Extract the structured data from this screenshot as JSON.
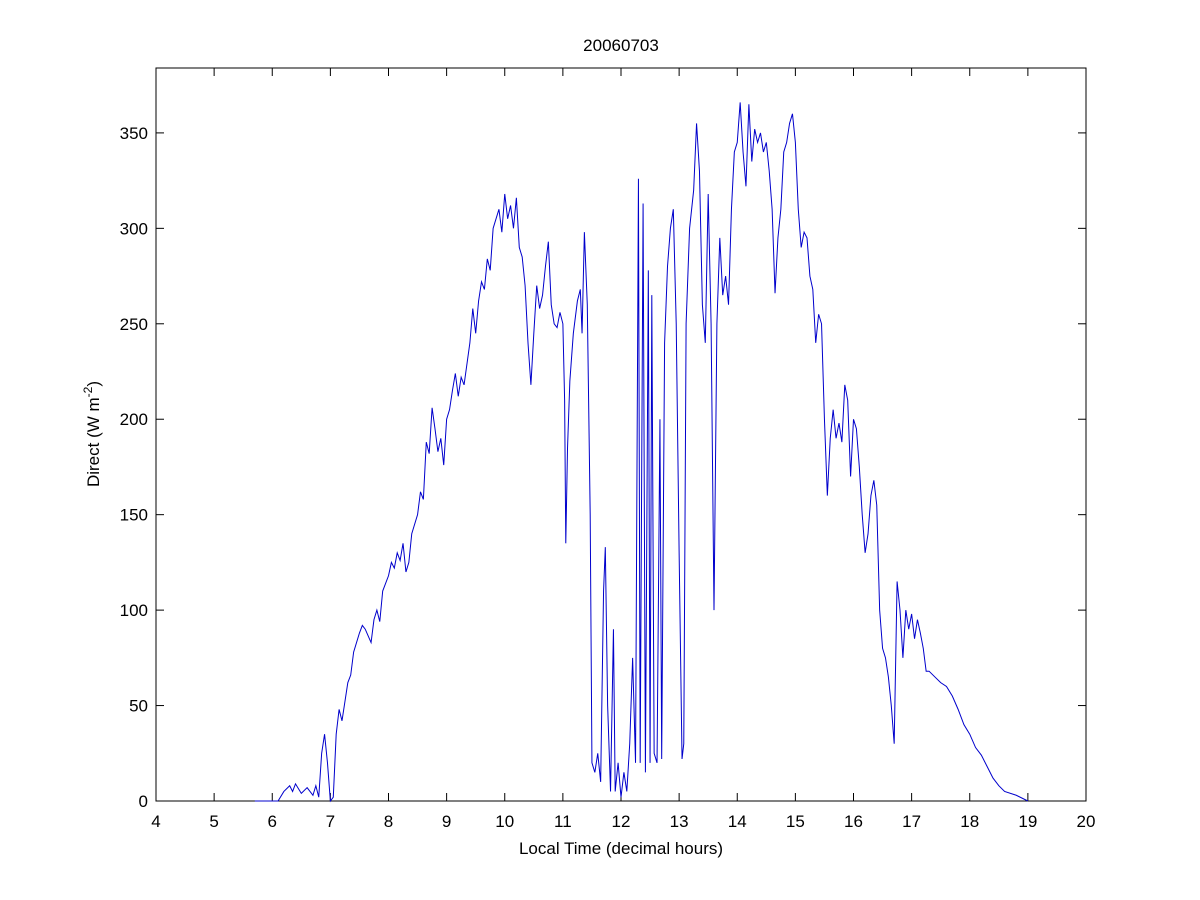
{
  "chart_data": {
    "type": "line",
    "title": "20060703",
    "xlabel": "Local Time (decimal hours)",
    "ylabel_parts": [
      "Direct (W m",
      "-2",
      ")"
    ],
    "xlim": [
      4,
      20
    ],
    "xticks": [
      4,
      5,
      6,
      7,
      8,
      9,
      10,
      11,
      12,
      13,
      14,
      15,
      16,
      17,
      18,
      19,
      20
    ],
    "ylim": [
      0,
      384
    ],
    "yticks": [
      0,
      50,
      100,
      150,
      200,
      250,
      300,
      350
    ],
    "x": [
      5.7,
      6.1,
      6.2,
      6.3,
      6.35,
      6.4,
      6.5,
      6.6,
      6.7,
      6.75,
      6.8,
      6.85,
      6.9,
      6.95,
      7.0,
      7.05,
      7.1,
      7.15,
      7.2,
      7.3,
      7.35,
      7.4,
      7.5,
      7.55,
      7.6,
      7.7,
      7.75,
      7.8,
      7.85,
      7.9,
      8.0,
      8.05,
      8.1,
      8.15,
      8.2,
      8.25,
      8.3,
      8.35,
      8.4,
      8.5,
      8.55,
      8.6,
      8.65,
      8.7,
      8.75,
      8.8,
      8.85,
      8.9,
      8.95,
      9.0,
      9.05,
      9.1,
      9.15,
      9.2,
      9.25,
      9.3,
      9.4,
      9.45,
      9.5,
      9.55,
      9.6,
      9.65,
      9.7,
      9.75,
      9.8,
      9.85,
      9.9,
      9.95,
      10.0,
      10.05,
      10.1,
      10.15,
      10.2,
      10.25,
      10.3,
      10.35,
      10.4,
      10.45,
      10.5,
      10.55,
      10.6,
      10.65,
      10.7,
      10.75,
      10.8,
      10.85,
      10.9,
      10.95,
      11.0,
      11.03,
      11.05,
      11.08,
      11.12,
      11.18,
      11.25,
      11.3,
      11.33,
      11.37,
      11.42,
      11.47,
      11.5,
      11.55,
      11.6,
      11.65,
      11.7,
      11.73,
      11.77,
      11.82,
      11.87,
      11.9,
      11.95,
      12.0,
      12.05,
      12.1,
      12.15,
      12.2,
      12.25,
      12.3,
      12.33,
      12.38,
      12.42,
      12.47,
      12.5,
      12.53,
      12.57,
      12.62,
      12.67,
      12.7,
      12.75,
      12.8,
      12.85,
      12.9,
      12.95,
      13.0,
      13.05,
      13.08,
      13.12,
      13.18,
      13.25,
      13.3,
      13.35,
      13.4,
      13.45,
      13.5,
      13.55,
      13.6,
      13.65,
      13.7,
      13.75,
      13.8,
      13.85,
      13.9,
      13.95,
      14.0,
      14.05,
      14.1,
      14.15,
      14.2,
      14.25,
      14.3,
      14.35,
      14.4,
      14.45,
      14.5,
      14.55,
      14.6,
      14.65,
      14.7,
      14.75,
      14.8,
      14.85,
      14.9,
      14.95,
      15.0,
      15.05,
      15.1,
      15.15,
      15.2,
      15.25,
      15.3,
      15.35,
      15.4,
      15.45,
      15.5,
      15.55,
      15.6,
      15.65,
      15.7,
      15.75,
      15.8,
      15.85,
      15.9,
      15.95,
      16.0,
      16.05,
      16.1,
      16.15,
      16.2,
      16.25,
      16.3,
      16.35,
      16.4,
      16.45,
      16.5,
      16.55,
      16.6,
      16.65,
      16.7,
      16.75,
      16.8,
      16.85,
      16.9,
      16.95,
      17.0,
      17.05,
      17.1,
      17.15,
      17.2,
      17.25,
      17.3,
      17.4,
      17.5,
      17.6,
      17.7,
      17.8,
      17.9,
      18.0,
      18.1,
      18.2,
      18.3,
      18.4,
      18.5,
      18.6,
      18.8,
      19.0
    ],
    "series": [
      {
        "color": "#0000cc",
        "values": [
          0,
          0,
          5,
          8,
          5,
          9,
          4,
          7,
          3,
          8,
          2,
          25,
          35,
          20,
          0,
          2,
          35,
          48,
          42,
          62,
          66,
          78,
          88,
          92,
          90,
          83,
          95,
          100,
          94,
          110,
          118,
          125,
          122,
          130,
          126,
          135,
          120,
          125,
          140,
          150,
          162,
          158,
          188,
          182,
          206,
          195,
          183,
          190,
          176,
          200,
          205,
          215,
          224,
          212,
          222,
          218,
          240,
          258,
          245,
          262,
          272,
          268,
          284,
          278,
          300,
          305,
          310,
          298,
          318,
          305,
          312,
          300,
          316,
          290,
          285,
          270,
          240,
          218,
          245,
          270,
          258,
          265,
          280,
          293,
          260,
          250,
          248,
          256,
          250,
          210,
          135,
          185,
          220,
          245,
          262,
          268,
          245,
          298,
          260,
          150,
          20,
          15,
          25,
          10,
          110,
          133,
          50,
          5,
          90,
          5,
          20,
          2,
          15,
          5,
          30,
          75,
          20,
          326,
          20,
          313,
          15,
          278,
          20,
          265,
          25,
          20,
          200,
          22,
          240,
          280,
          300,
          310,
          250,
          130,
          22,
          30,
          250,
          300,
          320,
          355,
          330,
          260,
          240,
          318,
          250,
          100,
          250,
          295,
          265,
          275,
          260,
          310,
          340,
          345,
          366,
          340,
          322,
          365,
          335,
          352,
          345,
          350,
          340,
          345,
          330,
          310,
          266,
          295,
          310,
          340,
          345,
          355,
          360,
          345,
          310,
          290,
          298,
          295,
          275,
          268,
          240,
          255,
          250,
          200,
          160,
          190,
          205,
          190,
          198,
          188,
          218,
          210,
          170,
          200,
          195,
          175,
          150,
          130,
          140,
          160,
          168,
          155,
          100,
          80,
          75,
          65,
          50,
          30,
          115,
          100,
          75,
          100,
          90,
          98,
          85,
          95,
          88,
          80,
          68,
          68,
          65,
          62,
          60,
          55,
          48,
          40,
          35,
          28,
          24,
          18,
          12,
          8,
          5,
          3,
          0
        ]
      }
    ]
  }
}
